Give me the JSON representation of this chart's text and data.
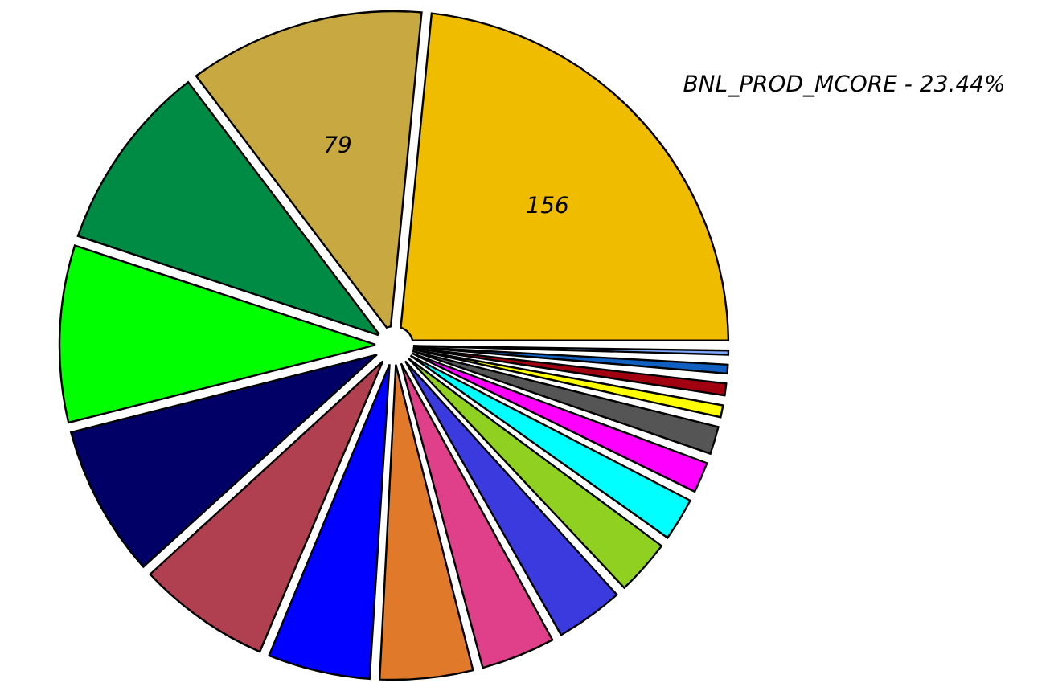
{
  "chart_data": {
    "type": "pie",
    "categories": [
      null,
      null,
      null,
      null,
      null,
      null,
      null,
      null,
      null,
      null,
      null,
      null,
      null,
      null,
      null,
      null,
      null,
      null
    ],
    "values": [
      156,
      79,
      64,
      60,
      52,
      46,
      36,
      33,
      27,
      25,
      21,
      17,
      13,
      12,
      7,
      7,
      6,
      4.5
    ],
    "colors": [
      "#f0bc00",
      "#c8a840",
      "#008b45",
      "#00ff00",
      "#000066",
      "#b04050",
      "#0000ff",
      "#e07a2a",
      "#e0408a",
      "#3a3adf",
      "#90d020",
      "#00ffff",
      "#ff00ff",
      "#555555",
      "#ffff00",
      "#a00010",
      "#1060c0",
      "#80a8ff"
    ],
    "value_labels": [
      "156",
      "79",
      null,
      null,
      null,
      null,
      null,
      null,
      null,
      null,
      null,
      null,
      null,
      null,
      null,
      null,
      null,
      null
    ],
    "annotations": [
      "BNL_PROD_MCORE - 23.44%"
    ]
  }
}
